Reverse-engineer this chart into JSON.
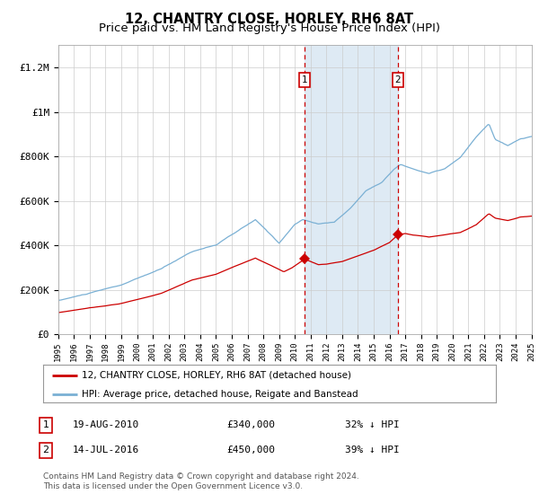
{
  "title": "12, CHANTRY CLOSE, HORLEY, RH6 8AT",
  "subtitle": "Price paid vs. HM Land Registry's House Price Index (HPI)",
  "ylim": [
    0,
    1300000
  ],
  "yticks": [
    0,
    200000,
    400000,
    600000,
    800000,
    1000000,
    1200000
  ],
  "ytick_labels": [
    "£0",
    "£200K",
    "£400K",
    "£600K",
    "£800K",
    "£1M",
    "£1.2M"
  ],
  "red_line_color": "#cc0000",
  "blue_line_color": "#7ab0d4",
  "shade_color": "#deeaf4",
  "dashed_color": "#cc0000",
  "transaction1_date": 2010.63,
  "transaction1_price": 340000,
  "transaction1_label": "1",
  "transaction2_date": 2016.54,
  "transaction2_price": 450000,
  "transaction2_label": "2",
  "legend_red": "12, CHANTRY CLOSE, HORLEY, RH6 8AT (detached house)",
  "legend_blue": "HPI: Average price, detached house, Reigate and Banstead",
  "table_row1": [
    "1",
    "19-AUG-2010",
    "£340,000",
    "32% ↓ HPI"
  ],
  "table_row2": [
    "2",
    "14-JUL-2016",
    "£450,000",
    "39% ↓ HPI"
  ],
  "footer": "Contains HM Land Registry data © Crown copyright and database right 2024.\nThis data is licensed under the Open Government Licence v3.0.",
  "bg_color": "#ffffff",
  "grid_color": "#cccccc"
}
